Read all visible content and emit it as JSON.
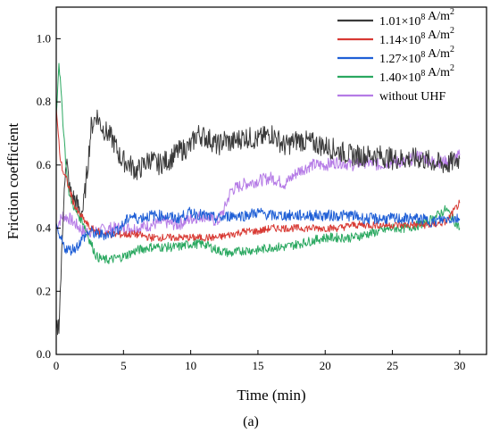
{
  "chart_data": {
    "type": "line",
    "caption": "(a)",
    "xlabel": "Time (min)",
    "ylabel": "Friction coefficient",
    "xlim": [
      0,
      32
    ],
    "ylim": [
      0,
      1.1
    ],
    "xticks": [
      0,
      5,
      10,
      15,
      20,
      25,
      30
    ],
    "yticks": [
      0.0,
      0.2,
      0.4,
      0.6,
      0.8,
      1.0
    ],
    "xtick_labels": [
      "0",
      "5",
      "10",
      "15",
      "20",
      "25",
      "30"
    ],
    "ytick_labels": [
      "0.0",
      "0.2",
      "0.4",
      "0.6",
      "0.8",
      "1.0"
    ],
    "legend_position": "top-right",
    "grid": false,
    "series": [
      {
        "name": "1.01×10⁸ A/m²",
        "legend": {
          "base": "1.01×10",
          "exp": "8",
          "unit": " A/m",
          "unit_exp": "2"
        },
        "color": "#3a3a3a",
        "x": [
          0,
          0.2,
          0.4,
          0.6,
          0.8,
          1.0,
          1.2,
          1.5,
          1.8,
          2.0,
          2.3,
          2.6,
          3.0,
          3.4,
          3.8,
          4.2,
          4.8,
          5.5,
          6.0,
          7.0,
          7.5,
          8.5,
          9.0,
          10.0,
          10.5,
          11.5,
          12.0,
          12.5,
          13.0,
          14.0,
          15.0,
          16.0,
          17.0,
          18.0,
          19.0,
          20.0,
          22.0,
          24.0,
          25.0,
          27.0,
          28.0,
          29.0,
          30.0
        ],
        "y": [
          0.07,
          0.1,
          0.3,
          0.55,
          0.6,
          0.52,
          0.5,
          0.48,
          0.45,
          0.46,
          0.58,
          0.72,
          0.76,
          0.72,
          0.7,
          0.68,
          0.62,
          0.6,
          0.58,
          0.62,
          0.6,
          0.62,
          0.64,
          0.66,
          0.7,
          0.68,
          0.66,
          0.68,
          0.67,
          0.69,
          0.68,
          0.7,
          0.66,
          0.68,
          0.67,
          0.66,
          0.63,
          0.63,
          0.62,
          0.62,
          0.61,
          0.6,
          0.62
        ]
      },
      {
        "name": "1.14×10⁸ A/m²",
        "legend": {
          "base": "1.14×10",
          "exp": "8",
          "unit": " A/m",
          "unit_exp": "2"
        },
        "color": "#d83a34",
        "x": [
          0,
          0.1,
          0.3,
          0.5,
          0.8,
          1.0,
          1.3,
          1.6,
          2.0,
          2.5,
          3.0,
          4.0,
          5.0,
          6.0,
          7.0,
          8.0,
          9.0,
          10.0,
          11.0,
          12.0,
          13.0,
          14.0,
          15.0,
          16.0,
          17.0,
          18.0,
          19.0,
          20.0,
          21.0,
          22.0,
          23.0,
          24.0,
          25.0,
          26.0,
          27.0,
          28.0,
          29.0,
          30.0
        ],
        "y": [
          0.78,
          0.72,
          0.62,
          0.58,
          0.55,
          0.52,
          0.48,
          0.45,
          0.43,
          0.4,
          0.39,
          0.38,
          0.38,
          0.38,
          0.37,
          0.37,
          0.37,
          0.37,
          0.37,
          0.37,
          0.38,
          0.39,
          0.39,
          0.4,
          0.4,
          0.4,
          0.4,
          0.4,
          0.4,
          0.41,
          0.41,
          0.41,
          0.41,
          0.41,
          0.41,
          0.41,
          0.42,
          0.48
        ]
      },
      {
        "name": "1.27×10⁸ A/m²",
        "legend": {
          "base": "1.27×10",
          "exp": "8",
          "unit": " A/m",
          "unit_exp": "2"
        },
        "color": "#1f5fd6",
        "x": [
          0,
          0.2,
          0.4,
          0.6,
          1.0,
          1.5,
          2.0,
          2.5,
          3.0,
          4.0,
          5.0,
          5.5,
          6.0,
          7.0,
          8.0,
          9.0,
          10.0,
          11.0,
          12.0,
          13.0,
          14.0,
          15.0,
          16.0,
          17.0,
          18.0,
          19.0,
          20.0,
          21.0,
          22.0,
          23.0,
          24.0,
          25.0,
          26.0,
          27.0,
          28.0,
          29.0,
          30.0
        ],
        "y": [
          0.4,
          0.37,
          0.36,
          0.34,
          0.33,
          0.34,
          0.37,
          0.39,
          0.38,
          0.38,
          0.41,
          0.44,
          0.43,
          0.44,
          0.44,
          0.43,
          0.45,
          0.44,
          0.43,
          0.44,
          0.44,
          0.45,
          0.44,
          0.44,
          0.44,
          0.44,
          0.44,
          0.44,
          0.44,
          0.43,
          0.43,
          0.43,
          0.43,
          0.43,
          0.42,
          0.43,
          0.43
        ]
      },
      {
        "name": "1.40×10⁸ A/m²",
        "legend": {
          "base": "1.40×10",
          "exp": "8",
          "unit": " A/m",
          "unit_exp": "2"
        },
        "color": "#2aa860",
        "x": [
          0,
          0.2,
          0.4,
          0.6,
          0.8,
          1.0,
          1.5,
          2.0,
          2.5,
          3.0,
          3.5,
          4.0,
          5.0,
          6.0,
          7.0,
          8.0,
          9.0,
          10.0,
          11.0,
          12.0,
          13.0,
          14.0,
          15.0,
          16.0,
          17.0,
          18.0,
          19.0,
          20.0,
          21.0,
          22.0,
          23.0,
          24.0,
          25.0,
          26.0,
          27.0,
          28.0,
          29.0,
          30.0
        ],
        "y": [
          0.76,
          0.93,
          0.8,
          0.68,
          0.56,
          0.5,
          0.45,
          0.42,
          0.36,
          0.31,
          0.3,
          0.3,
          0.31,
          0.33,
          0.34,
          0.34,
          0.34,
          0.35,
          0.35,
          0.33,
          0.32,
          0.33,
          0.33,
          0.34,
          0.34,
          0.35,
          0.36,
          0.37,
          0.37,
          0.37,
          0.38,
          0.39,
          0.4,
          0.4,
          0.41,
          0.43,
          0.46,
          0.4
        ]
      },
      {
        "name": "without UHF",
        "legend": {
          "base": "without UHF",
          "exp": "",
          "unit": "",
          "unit_exp": ""
        },
        "color": "#b57be6",
        "x": [
          0,
          0.2,
          0.5,
          1.0,
          1.5,
          2.0,
          3.0,
          4.0,
          5.0,
          6.0,
          7.0,
          8.0,
          9.0,
          10.0,
          11.0,
          12.0,
          12.5,
          13.0,
          14.0,
          15.0,
          16.0,
          17.0,
          18.0,
          19.0,
          20.0,
          21.0,
          22.0,
          23.0,
          24.0,
          25.0,
          26.0,
          27.0,
          28.0,
          29.0,
          30.0
        ],
        "y": [
          0.4,
          0.42,
          0.44,
          0.43,
          0.41,
          0.39,
          0.39,
          0.4,
          0.4,
          0.4,
          0.41,
          0.42,
          0.41,
          0.43,
          0.44,
          0.42,
          0.46,
          0.52,
          0.54,
          0.55,
          0.56,
          0.54,
          0.58,
          0.6,
          0.6,
          0.61,
          0.6,
          0.61,
          0.6,
          0.61,
          0.61,
          0.63,
          0.61,
          0.61,
          0.63
        ]
      }
    ]
  }
}
